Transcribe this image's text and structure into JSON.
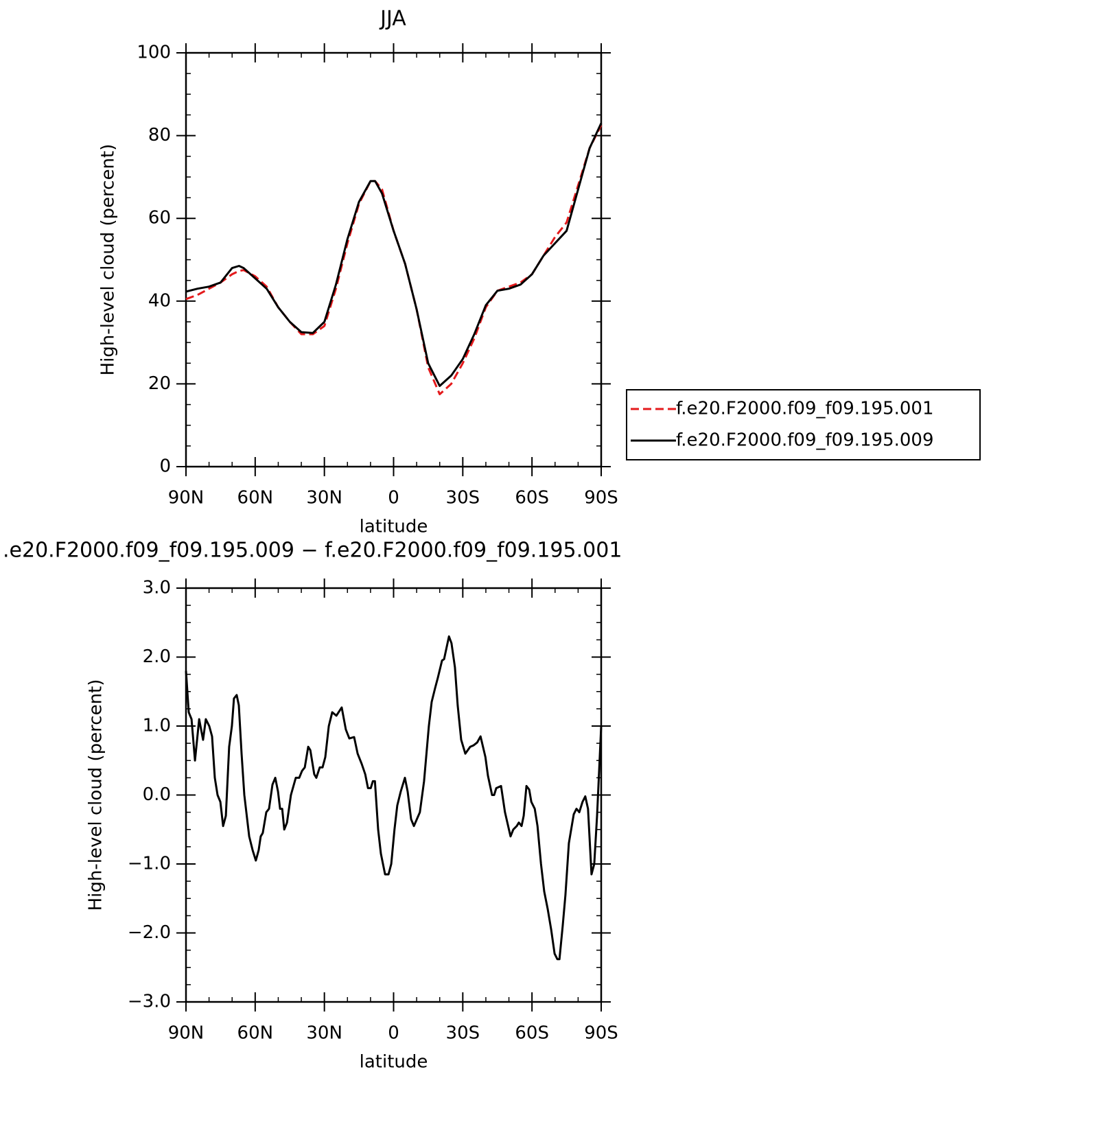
{
  "chart_data": [
    {
      "type": "line",
      "title": "JJA",
      "xlabel": "latitude",
      "ylabel": "High-level cloud (percent)",
      "x": [
        90,
        85,
        80,
        75,
        70,
        67,
        65,
        60,
        55,
        50,
        45,
        40,
        35,
        30,
        25,
        20,
        15,
        10,
        8,
        5,
        0,
        -5,
        -10,
        -15,
        -20,
        -25,
        -30,
        -35,
        -40,
        -45,
        -50,
        -55,
        -60,
        -65,
        -70,
        -75,
        -80,
        -85,
        -90
      ],
      "series": [
        {
          "name": "f.e20.F2000.f09_f09.195.001",
          "color": "#e41a1c",
          "style": "dashed",
          "values": [
            40.5,
            41.5,
            43,
            44.5,
            46.5,
            47.3,
            47.5,
            46,
            43.5,
            38.5,
            35,
            32,
            32,
            34,
            43,
            54,
            63.5,
            69,
            69,
            67,
            57,
            49,
            38,
            24,
            17.5,
            20,
            25,
            31,
            38.5,
            42.5,
            43.5,
            44.5,
            46.5,
            51,
            55.5,
            59,
            68,
            77,
            82.5
          ]
        },
        {
          "name": "f.e20.F2000.f09_f09.195.009",
          "color": "#000000",
          "style": "solid",
          "values": [
            42.3,
            43,
            43.5,
            44.5,
            48,
            48.5,
            48,
            45.5,
            43,
            38.5,
            35,
            32.5,
            32.3,
            35,
            44,
            55,
            64,
            69,
            69,
            66,
            57,
            49,
            38,
            25,
            19.5,
            22,
            26,
            32,
            39,
            42.5,
            43,
            44,
            46.5,
            51,
            54,
            57,
            67,
            77,
            83
          ]
        }
      ],
      "xlim": [
        90,
        -90
      ],
      "xticks": [
        {
          "value": 90,
          "label": "90N"
        },
        {
          "value": 60,
          "label": "60N"
        },
        {
          "value": 30,
          "label": "30N"
        },
        0,
        {
          "value": -30,
          "label": "30S"
        },
        {
          "value": -60,
          "label": "60S"
        },
        {
          "value": -90,
          "label": "90S"
        }
      ],
      "ylim": [
        0,
        100
      ],
      "yticks": [
        0,
        20,
        40,
        60,
        80,
        100
      ],
      "legend": "right"
    },
    {
      "type": "line",
      "title": ".e20.F2000.f09_f09.195.009 − f.e20.F2000.f09_f09.195.001",
      "xlabel": "latitude",
      "ylabel": "High-level cloud (percent)",
      "x": [
        90,
        88.8,
        87.6,
        86.1,
        84.3,
        82.6,
        81.4,
        79.9,
        78.7,
        77.5,
        76.3,
        75.1,
        73.9,
        72.7,
        71.3,
        70.1,
        69.2,
        68.0,
        67.1,
        65.9,
        64.7,
        62.6,
        61.1,
        59.7,
        58.5,
        57.6,
        56.7,
        55.2,
        54.0,
        52.5,
        51.3,
        50.1,
        49.2,
        48.3,
        47.4,
        46.2,
        44.5,
        42.4,
        40.9,
        39.7,
        38.5,
        37.0,
        36.1,
        34.4,
        33.5,
        32.0,
        30.8,
        29.6,
        28.1,
        26.6,
        24.8,
        22.5,
        20.7,
        19.2,
        17.1,
        15.6,
        13.8,
        12.3,
        11.1,
        9.9,
        9.0,
        8.1,
        6.7,
        5.5,
        3.7,
        2.2,
        1.0,
        -0.4,
        -1.6,
        -3.1,
        -4.9,
        -6.1,
        -7.6,
        -8.8,
        -11.4,
        -13.2,
        -15.3,
        -16.5,
        -18.0,
        -19.2,
        -21.0,
        -21.9,
        -24.0,
        -25.1,
        -26.6,
        -27.8,
        -29.3,
        -31.1,
        -33.2,
        -34.7,
        -36.2,
        -37.7,
        -39.8,
        -40.9,
        -42.7,
        -43.6,
        -44.5,
        -46.6,
        -48.3,
        -50.7,
        -51.9,
        -53.4,
        -54.3,
        -55.5,
        -56.4,
        -57.6,
        -58.8,
        -59.7,
        -61.2,
        -62.4,
        -63.9,
        -65.3,
        -66.8,
        -68.3,
        -69.8,
        -71.0,
        -71.9,
        -73.3,
        -74.5,
        -76.0,
        -78.1,
        -79.3,
        -80.5,
        -81.9,
        -83.1,
        -84.3,
        -85.8,
        -87.0,
        -88.2,
        -90
      ],
      "series": [
        {
          "color": "#000000",
          "style": "solid",
          "values": [
            1.8,
            1.2,
            1.1,
            0.5,
            1.1,
            0.8,
            1.1,
            1.0,
            0.85,
            0.25,
            0.0,
            -0.1,
            -0.45,
            -0.3,
            0.7,
            1.0,
            1.4,
            1.45,
            1.3,
            0.6,
            0.0,
            -0.6,
            -0.8,
            -0.95,
            -0.8,
            -0.6,
            -0.55,
            -0.25,
            -0.2,
            0.15,
            0.25,
            0.05,
            -0.2,
            -0.2,
            -0.5,
            -0.4,
            0.0,
            0.25,
            0.25,
            0.35,
            0.4,
            0.7,
            0.65,
            0.3,
            0.25,
            0.4,
            0.4,
            0.55,
            1.0,
            1.2,
            1.15,
            1.27,
            0.95,
            0.82,
            0.84,
            0.6,
            0.45,
            0.3,
            0.1,
            0.1,
            0.2,
            0.2,
            -0.5,
            -0.85,
            -1.15,
            -1.15,
            -1.0,
            -0.5,
            -0.15,
            0.05,
            0.25,
            0.05,
            -0.35,
            -0.45,
            -0.25,
            0.2,
            1.0,
            1.35,
            1.55,
            1.7,
            1.95,
            1.97,
            2.3,
            2.2,
            1.85,
            1.3,
            0.8,
            0.6,
            0.7,
            0.72,
            0.76,
            0.85,
            0.55,
            0.28,
            0.0,
            0.0,
            0.1,
            0.13,
            -0.25,
            -0.6,
            -0.5,
            -0.45,
            -0.4,
            -0.45,
            -0.3,
            0.13,
            0.08,
            -0.1,
            -0.2,
            -0.45,
            -1.0,
            -1.4,
            -1.65,
            -1.95,
            -2.3,
            -2.38,
            -2.38,
            -1.9,
            -1.45,
            -0.7,
            -0.28,
            -0.2,
            -0.25,
            -0.1,
            -0.02,
            -0.2,
            -1.15,
            -1.0,
            -0.3,
            1.0
          ]
        }
      ],
      "xlim": [
        90,
        -90
      ],
      "xticks": [
        {
          "value": 90,
          "label": "90N"
        },
        {
          "value": 60,
          "label": "60N"
        },
        {
          "value": 30,
          "label": "30N"
        },
        0,
        {
          "value": -30,
          "label": "30S"
        },
        {
          "value": -60,
          "label": "60S"
        },
        {
          "value": -90,
          "label": "90S"
        }
      ],
      "ylim": [
        -3,
        3
      ],
      "yticks": [
        {
          "value": -3,
          "label": "−3.0"
        },
        {
          "value": -2,
          "label": "−2.0"
        },
        {
          "value": -1,
          "label": "−1.0"
        },
        {
          "value": 0,
          "label": "0.0"
        },
        {
          "value": 1,
          "label": "1.0"
        },
        {
          "value": 2,
          "label": "2.0"
        },
        {
          "value": 3,
          "label": "3.0"
        }
      ]
    }
  ]
}
